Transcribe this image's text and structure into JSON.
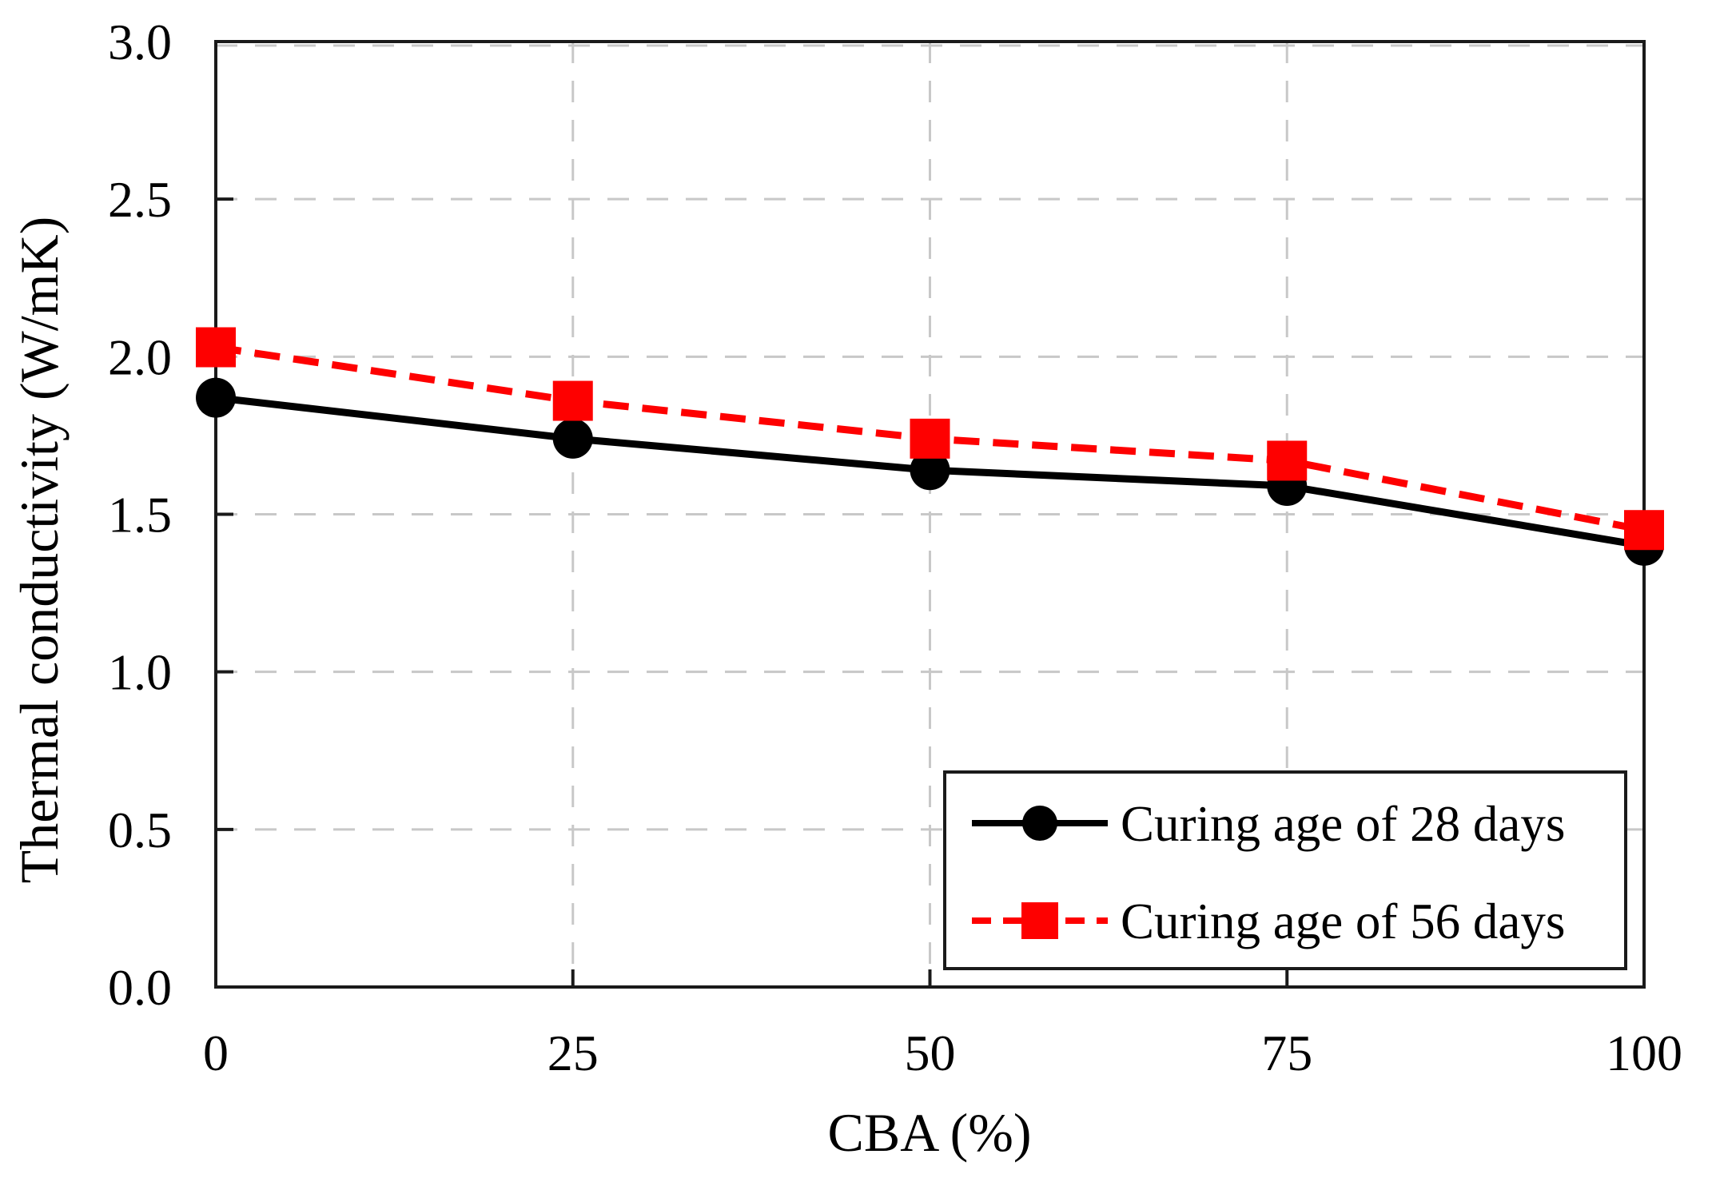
{
  "chart_data": {
    "type": "line",
    "title": "",
    "xlabel": "CBA (%)",
    "ylabel": "Thermal conductivity (W/mK)",
    "xlim": [
      0,
      100
    ],
    "ylim": [
      0.0,
      3.0
    ],
    "xticks": [
      0,
      25,
      50,
      75,
      100
    ],
    "yticks": [
      0.0,
      0.5,
      1.0,
      1.5,
      2.0,
      2.5,
      3.0
    ],
    "grid": "dashed",
    "grid_color": "#c8c8c8",
    "axis_color": "#1a1a1a",
    "background_color": "#ffffff",
    "legend_position": "bottom-right",
    "x": [
      0,
      25,
      50,
      75,
      100
    ],
    "series": [
      {
        "name": "Curing age of 28 days",
        "color": "#000000",
        "marker": "circle",
        "line_style": "solid",
        "values": [
          1.87,
          1.74,
          1.64,
          1.59,
          1.4
        ]
      },
      {
        "name": "Curing age of 56 days",
        "color": "#fe0000",
        "marker": "square",
        "line_style": "dashed",
        "values": [
          2.03,
          1.86,
          1.74,
          1.67,
          1.45
        ]
      }
    ]
  }
}
